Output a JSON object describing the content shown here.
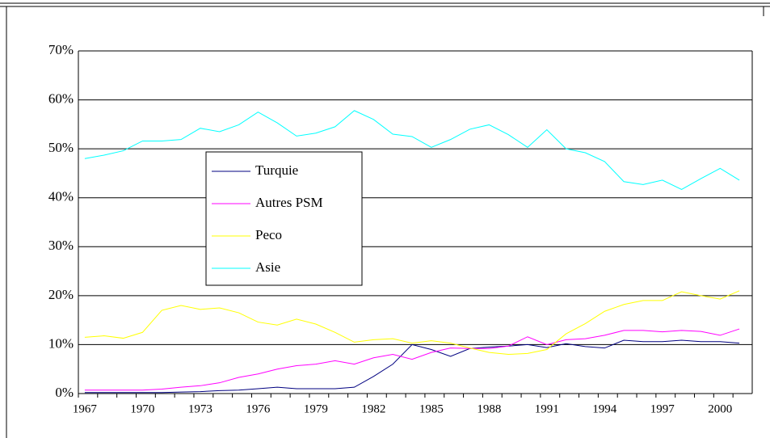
{
  "chart_data": {
    "type": "line",
    "categories": [
      1967,
      null,
      null,
      1970,
      null,
      null,
      1973,
      null,
      null,
      1976,
      null,
      null,
      1979,
      null,
      null,
      1982,
      null,
      null,
      1985,
      null,
      null,
      1988,
      null,
      null,
      1991,
      null,
      null,
      1994,
      null,
      null,
      1997,
      null,
      null,
      2000,
      null
    ],
    "series": [
      {
        "name": "Turquie",
        "color": "#000080",
        "values": [
          0.2,
          0.2,
          0.2,
          0.2,
          0.2,
          0.3,
          0.4,
          0.6,
          0.7,
          1,
          1.3,
          1,
          1,
          1,
          1.3,
          3.5,
          6,
          10,
          9,
          7.6,
          9.2,
          9.5,
          9.7,
          10,
          9.4,
          10.2,
          9.6,
          9.3,
          10.9,
          10.6,
          10.6,
          10.9,
          10.6,
          10.6,
          10.3
        ]
      },
      {
        "name": "Autres PSM",
        "color": "#ff00ff",
        "values": [
          0.7,
          0.7,
          0.7,
          0.7,
          0.9,
          1.3,
          1.6,
          2.2,
          3.3,
          4,
          5,
          5.7,
          6,
          6.7,
          6,
          7.3,
          8,
          7,
          8.4,
          9.3,
          9.2,
          9.2,
          9.7,
          11.6,
          10,
          11,
          11.2,
          11.9,
          12.9,
          12.9,
          12.6,
          12.9,
          12.7,
          11.9,
          13.2
        ]
      },
      {
        "name": "Peco",
        "color": "#ffff00",
        "values": [
          11.5,
          11.8,
          11.3,
          12.5,
          17,
          18,
          17.2,
          17.5,
          16.5,
          14.6,
          14,
          15.2,
          14.2,
          12.5,
          10.5,
          11,
          11.2,
          10.3,
          10.8,
          10.3,
          9.3,
          8.4,
          8,
          8.2,
          9,
          12.2,
          14.3,
          16.8,
          18.2,
          19,
          19,
          20.8,
          20,
          19.3,
          21
        ]
      },
      {
        "name": "Asie",
        "color": "#00ffff",
        "values": [
          48,
          48.7,
          49.6,
          51.6,
          51.6,
          51.9,
          54.2,
          53.5,
          54.9,
          57.5,
          55.3,
          52.6,
          53.2,
          54.5,
          57.8,
          56,
          53,
          52.5,
          50.3,
          51.9,
          54,
          54.9,
          52.9,
          50.3,
          53.9,
          50,
          49.2,
          47.4,
          43.3,
          42.7,
          43.6,
          41.7,
          43.9,
          46,
          43.6
        ]
      }
    ],
    "ylim": [
      0,
      70
    ],
    "yticks": [
      {
        "value": 0,
        "label": "0%"
      },
      {
        "value": 10,
        "label": "10%"
      },
      {
        "value": 20,
        "label": "20%"
      },
      {
        "value": 30,
        "label": "30%"
      },
      {
        "value": 40,
        "label": "40%"
      },
      {
        "value": 50,
        "label": "50%"
      },
      {
        "value": 60,
        "label": "60%"
      },
      {
        "value": 70,
        "label": "70%"
      }
    ],
    "grid": true
  }
}
